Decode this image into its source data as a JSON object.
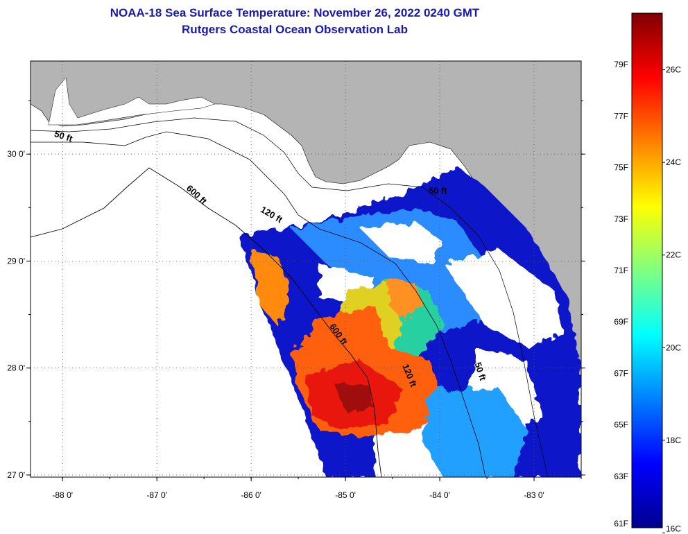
{
  "title": {
    "line1": "NOAA-18 Sea Surface Temperature:  November 26, 2022 0240 GMT",
    "line2": "Rutgers Coastal Ocean Observation Lab"
  },
  "map": {
    "lon_range": [
      -88.34,
      -82.5
    ],
    "lat_range": [
      26.98,
      30.87
    ],
    "lon_ticks": [
      {
        "value": -88,
        "label": "-88 0'"
      },
      {
        "value": -87,
        "label": "-87 0'"
      },
      {
        "value": -86,
        "label": "-86 0'"
      },
      {
        "value": -85,
        "label": "-85 0'"
      },
      {
        "value": -84,
        "label": "-84 0'"
      },
      {
        "value": -83,
        "label": "-83 0'"
      }
    ],
    "lat_ticks": [
      {
        "value": 30,
        "label": "30 0'"
      },
      {
        "value": 29,
        "label": "29 0'"
      },
      {
        "value": 28,
        "label": "28 0'"
      },
      {
        "value": 27,
        "label": "27 0'"
      }
    ],
    "grid": "dotted",
    "land_color": "#b4b4b4",
    "contour_labels": [
      {
        "text": "50 ft",
        "lon": -88.0,
        "lat": 30.14,
        "rot": 18
      },
      {
        "text": "600 ft",
        "lon": -86.6,
        "lat": 29.6,
        "rot": 42
      },
      {
        "text": "120 ft",
        "lon": -85.8,
        "lat": 29.41,
        "rot": 30
      },
      {
        "text": "50 ft",
        "lon": -84.02,
        "lat": 29.63,
        "rot": 0
      },
      {
        "text": "600 ft",
        "lon": -85.1,
        "lat": 28.3,
        "rot": 55
      },
      {
        "text": "120 ft",
        "lon": -84.35,
        "lat": 27.92,
        "rot": 68
      },
      {
        "text": "50 ft",
        "lon": -83.6,
        "lat": 27.96,
        "rot": 72
      }
    ]
  },
  "colorbar": {
    "f_labels": [
      {
        "value": 79,
        "label": "79F"
      },
      {
        "value": 77,
        "label": "77F"
      },
      {
        "value": 75,
        "label": "75F"
      },
      {
        "value": 73,
        "label": "73F"
      },
      {
        "value": 71,
        "label": "71F"
      },
      {
        "value": 69,
        "label": "69F"
      },
      {
        "value": 67,
        "label": "67F"
      },
      {
        "value": 65,
        "label": "65F"
      },
      {
        "value": 63,
        "label": "63F"
      },
      {
        "value": 61,
        "label": "61F"
      }
    ],
    "c_labels": [
      {
        "value": 26,
        "label": "26C"
      },
      {
        "value": 24,
        "label": "24C"
      },
      {
        "value": 22,
        "label": "22C"
      },
      {
        "value": 20,
        "label": "20C"
      },
      {
        "value": 18,
        "label": "18C"
      },
      {
        "value": 16,
        "label": "16C"
      }
    ],
    "range_f": [
      61,
      81
    ],
    "stops": [
      "#00008f",
      "#0000ff",
      "#0080ff",
      "#00ffff",
      "#80ff80",
      "#ffff00",
      "#ff8000",
      "#ff0000",
      "#800000"
    ]
  }
}
